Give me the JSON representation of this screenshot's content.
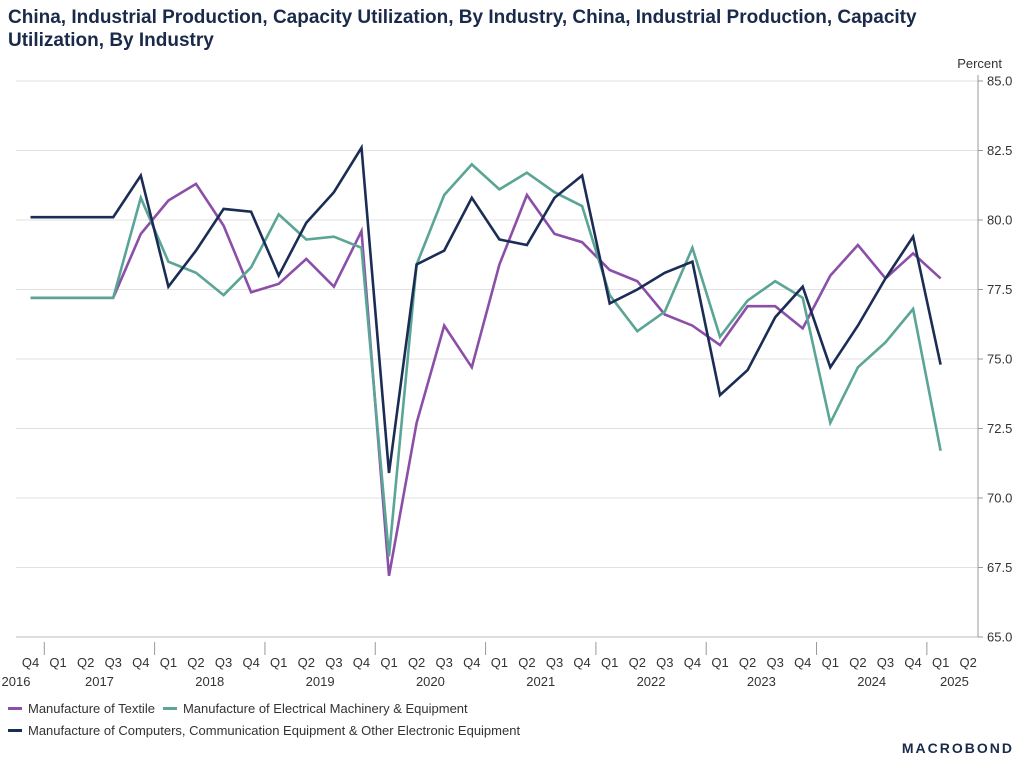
{
  "title": "China, Industrial Production, Capacity Utilization, By Industry, China, Industrial Production, Capacity Utilization, By Industry",
  "brand": "MACROBOND",
  "chart_data": {
    "type": "line",
    "ylabel": "Percent",
    "ylim": [
      65.0,
      85.0
    ],
    "yticks": [
      "85.0",
      "82.5",
      "80.0",
      "77.5",
      "75.0",
      "72.5",
      "70.0",
      "67.5",
      "65.0"
    ],
    "grid": true,
    "legend_position": "bottom",
    "quarter_labels": [
      "Q4",
      "Q1",
      "Q2",
      "Q3",
      "Q4",
      "Q1",
      "Q2",
      "Q3",
      "Q4",
      "Q1",
      "Q2",
      "Q3",
      "Q4",
      "Q1",
      "Q2",
      "Q3",
      "Q4",
      "Q1",
      "Q2",
      "Q3",
      "Q4",
      "Q1",
      "Q2",
      "Q3",
      "Q4",
      "Q1",
      "Q2",
      "Q3",
      "Q4",
      "Q1",
      "Q2",
      "Q3",
      "Q4",
      "Q1",
      "Q2"
    ],
    "year_labels": [
      {
        "label": "2016",
        "quarter_index": 0
      },
      {
        "label": "2017",
        "quarter_index": 2.5
      },
      {
        "label": "2018",
        "quarter_index": 6.5
      },
      {
        "label": "2019",
        "quarter_index": 10.5
      },
      {
        "label": "2020",
        "quarter_index": 14.5
      },
      {
        "label": "2021",
        "quarter_index": 18.5
      },
      {
        "label": "2022",
        "quarter_index": 22.5
      },
      {
        "label": "2023",
        "quarter_index": 26.5
      },
      {
        "label": "2024",
        "quarter_index": 30.5
      },
      {
        "label": "2025",
        "quarter_index": 33.5
      }
    ],
    "series": [
      {
        "name": "Manufacture of Textile",
        "color": "#8b4fa8",
        "values": [
          77.2,
          77.2,
          77.2,
          77.2,
          79.5,
          80.7,
          81.3,
          79.8,
          77.4,
          77.7,
          78.6,
          77.6,
          79.6,
          67.2,
          72.7,
          76.2,
          74.7,
          78.4,
          80.9,
          79.5,
          79.2,
          78.2,
          77.8,
          76.6,
          76.2,
          75.5,
          76.9,
          76.9,
          76.1,
          78.0,
          79.1,
          77.9,
          78.8,
          77.9
        ]
      },
      {
        "name": "Manufacture of Electrical Machinery & Equipment",
        "color": "#5aa595",
        "values": [
          77.2,
          77.2,
          77.2,
          77.2,
          80.8,
          78.5,
          78.1,
          77.3,
          78.3,
          80.2,
          79.3,
          79.4,
          79.0,
          67.9,
          78.4,
          80.9,
          82.0,
          81.1,
          81.7,
          81.0,
          80.5,
          77.3,
          76.0,
          76.7,
          79.0,
          75.8,
          77.1,
          77.8,
          77.2,
          72.7,
          74.7,
          75.6,
          76.8,
          71.7
        ]
      },
      {
        "name": "Manufacture of Computers, Communication Equipment & Other Electronic Equipment",
        "color": "#1b2d55",
        "values": [
          80.1,
          80.1,
          80.1,
          80.1,
          81.6,
          77.6,
          78.9,
          80.4,
          80.3,
          78.0,
          79.9,
          81.0,
          82.6,
          70.9,
          78.4,
          78.9,
          80.8,
          79.3,
          79.1,
          80.8,
          81.6,
          77.0,
          77.5,
          78.1,
          78.5,
          73.7,
          74.6,
          76.5,
          77.6,
          74.7,
          76.2,
          77.9,
          79.4,
          74.8
        ]
      }
    ]
  }
}
